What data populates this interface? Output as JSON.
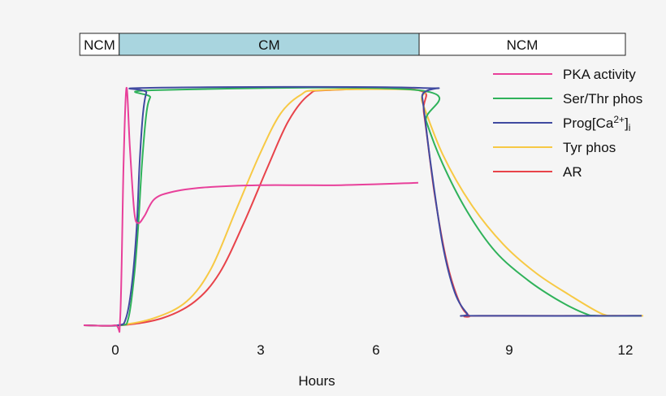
{
  "chart_data": {
    "type": "line",
    "title": "",
    "xlabel": "Hours",
    "ylabel": "",
    "x_ticks": [
      0,
      3,
      6,
      9,
      12
    ],
    "x_tick_labels": [
      "0",
      "3",
      "6",
      "9",
      "12"
    ],
    "ylim": [
      0,
      1
    ],
    "grid": false,
    "legend_position": "top-right",
    "phases": [
      {
        "label": "NCM",
        "start": -2.2,
        "end": 0.08,
        "color": "#ffffff"
      },
      {
        "label": "CM",
        "start": 0.08,
        "end": 6.97,
        "color": "#a9d5df"
      },
      {
        "label": "NCM",
        "start": 6.97,
        "end": 12.0,
        "color": "#ffffff"
      }
    ],
    "series": [
      {
        "name": "PKA activity",
        "color": "#e8409a",
        "points": [
          [
            -1.96,
            0
          ],
          [
            -0.03,
            0
          ],
          [
            0.1,
            0.03
          ],
          [
            0.17,
            0.68
          ],
          [
            0.23,
            1.0
          ],
          [
            0.3,
            0.75
          ],
          [
            0.39,
            0.48
          ],
          [
            0.47,
            0.43
          ],
          [
            0.6,
            0.46
          ],
          [
            0.8,
            0.53
          ],
          [
            1.14,
            0.56
          ],
          [
            1.81,
            0.58
          ],
          [
            2.98,
            0.59
          ],
          [
            5.09,
            0.59
          ],
          [
            6.95,
            0.6
          ]
        ]
      },
      {
        "name": "Ser/Thr phos",
        "color": "#2fb25a",
        "points": [
          [
            -1.96,
            0
          ],
          [
            0.1,
            0
          ],
          [
            0.27,
            0.03
          ],
          [
            0.39,
            0.21
          ],
          [
            0.47,
            0.41
          ],
          [
            0.55,
            0.68
          ],
          [
            0.64,
            0.89
          ],
          [
            0.72,
            0.96
          ],
          [
            0.84,
            0.99
          ],
          [
            6.95,
            0.99
          ],
          [
            7.13,
            0.86
          ],
          [
            7.5,
            0.68
          ],
          [
            8.05,
            0.48
          ],
          [
            8.69,
            0.31
          ],
          [
            9.48,
            0.19
          ],
          [
            10.32,
            0.1
          ],
          [
            10.95,
            0.05
          ],
          [
            11.27,
            0.04
          ],
          [
            12.42,
            0.04
          ]
        ]
      },
      {
        "name": "Prog[Ca2+]i",
        "color": "#404aa0",
        "points": [
          [
            -1.96,
            0
          ],
          [
            0.05,
            0
          ],
          [
            0.22,
            0.03
          ],
          [
            0.34,
            0.17
          ],
          [
            0.44,
            0.41
          ],
          [
            0.5,
            0.68
          ],
          [
            0.57,
            0.89
          ],
          [
            0.64,
            0.98
          ],
          [
            0.72,
            1.0
          ],
          [
            6.95,
            1.0
          ],
          [
            7.04,
            0.96
          ],
          [
            7.23,
            0.68
          ],
          [
            7.5,
            0.34
          ],
          [
            7.77,
            0.14
          ],
          [
            8.05,
            0.05
          ],
          [
            8.23,
            0.04
          ],
          [
            12.42,
            0.04
          ]
        ]
      },
      {
        "name": "Tyr phos",
        "color": "#f7c944",
        "points": [
          [
            -1.96,
            0
          ],
          [
            0.05,
            0
          ],
          [
            0.8,
            0.03
          ],
          [
            1.47,
            0.1
          ],
          [
            1.98,
            0.24
          ],
          [
            2.48,
            0.48
          ],
          [
            2.98,
            0.72
          ],
          [
            3.51,
            0.89
          ],
          [
            4.04,
            0.97
          ],
          [
            4.56,
            0.99
          ],
          [
            6.95,
            0.99
          ],
          [
            7.04,
            0.94
          ],
          [
            7.5,
            0.72
          ],
          [
            8.14,
            0.51
          ],
          [
            8.87,
            0.34
          ],
          [
            9.69,
            0.22
          ],
          [
            10.53,
            0.13
          ],
          [
            11.37,
            0.05
          ],
          [
            11.79,
            0.04
          ],
          [
            12.46,
            0.04
          ]
        ]
      },
      {
        "name": "AR",
        "color": "#e8434a",
        "points": [
          [
            -1.96,
            0
          ],
          [
            0.13,
            0
          ],
          [
            0.97,
            0.03
          ],
          [
            1.64,
            0.1
          ],
          [
            2.15,
            0.22
          ],
          [
            2.65,
            0.43
          ],
          [
            3.19,
            0.67
          ],
          [
            3.72,
            0.86
          ],
          [
            4.25,
            0.97
          ],
          [
            4.77,
            0.99
          ],
          [
            6.95,
            0.99
          ],
          [
            7.08,
            0.89
          ],
          [
            7.32,
            0.55
          ],
          [
            7.59,
            0.27
          ],
          [
            7.87,
            0.1
          ],
          [
            8.1,
            0.04
          ],
          [
            8.32,
            0.04
          ],
          [
            12.42,
            0.04
          ]
        ]
      }
    ],
    "legend": [
      {
        "label": "PKA activity"
      },
      {
        "label": "Ser/Thr phos"
      },
      {
        "label_main": "Prog[Ca",
        "label_sup": "2+",
        "label_close": "]",
        "label_sub": "i"
      },
      {
        "label": "Tyr phos"
      },
      {
        "label": "AR"
      }
    ]
  }
}
